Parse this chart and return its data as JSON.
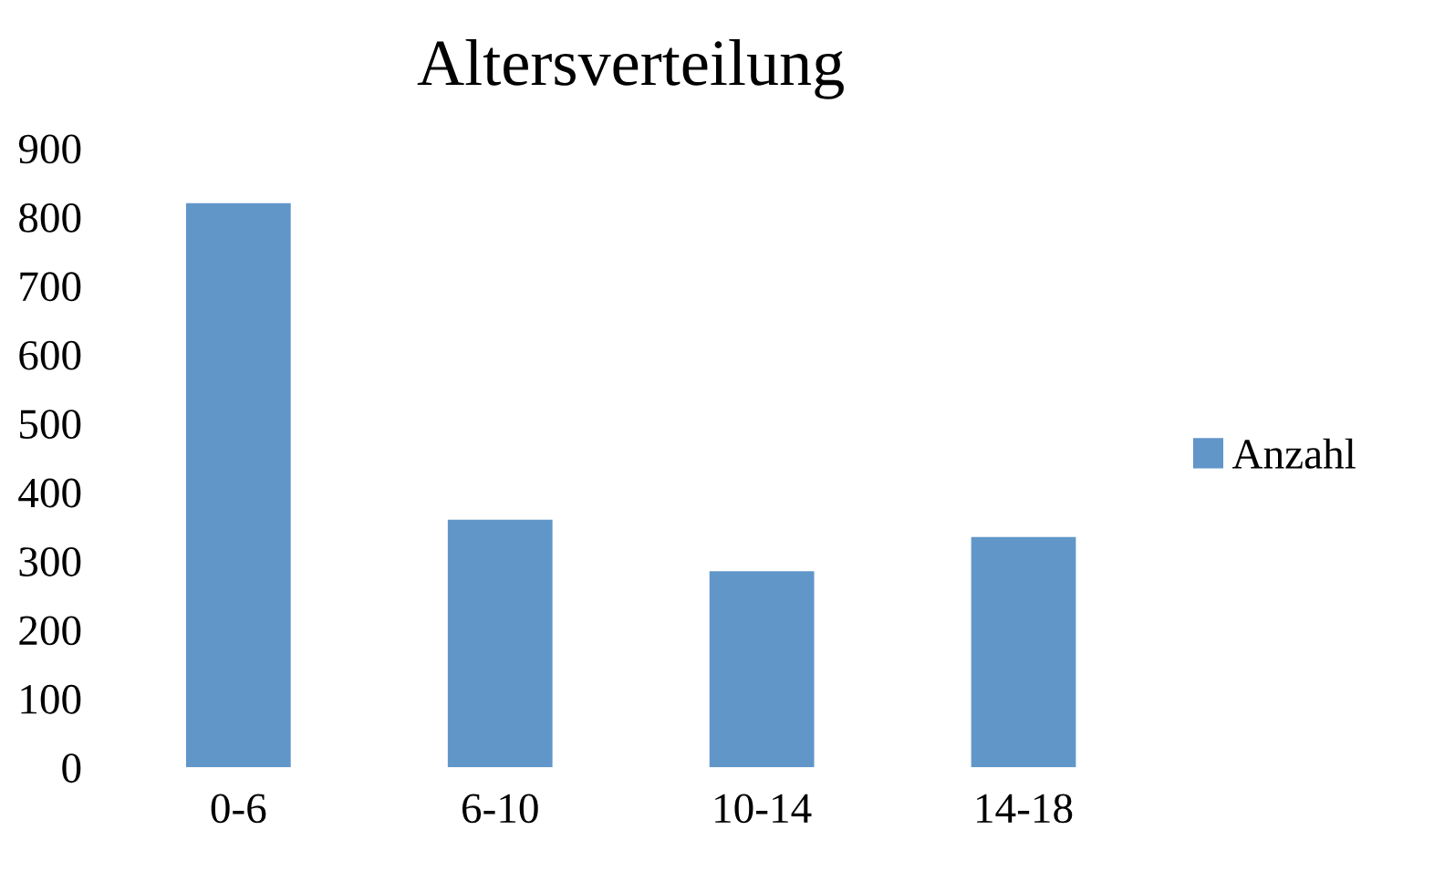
{
  "chart_data": {
    "type": "bar",
    "title": "Altersverteilung",
    "categories": [
      "0-6",
      "6-10",
      "10-14",
      "14-18"
    ],
    "series": [
      {
        "name": "Anzahl",
        "color": "#6196c9",
        "values": [
          820,
          360,
          285,
          335
        ]
      }
    ],
    "ylim": [
      0,
      900
    ],
    "yticks": [
      0,
      100,
      200,
      300,
      400,
      500,
      600,
      700,
      800,
      900
    ],
    "grid": false,
    "legend": "right"
  }
}
